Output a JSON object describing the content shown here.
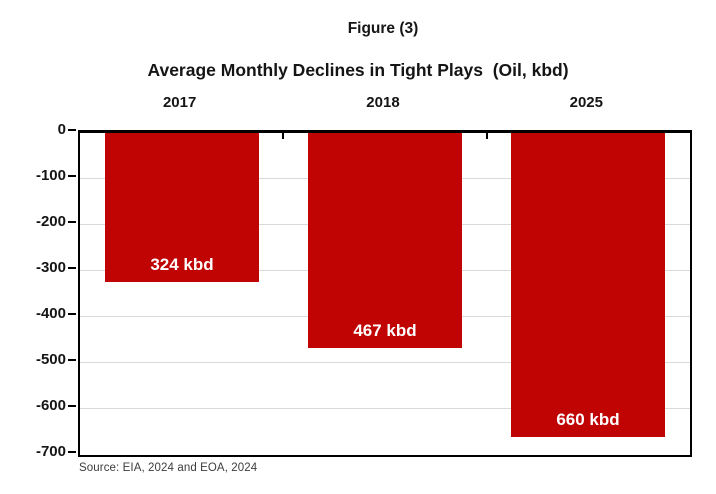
{
  "chart_data": {
    "type": "bar",
    "title": "Figure (3)",
    "subtitle": "Average Monthly Declines in Tight Plays  (Oil, kbd)",
    "categories": [
      "2017",
      "2018",
      "2025"
    ],
    "values": [
      -324,
      -467,
      -660
    ],
    "bar_labels": [
      "324 kbd",
      "467 kbd",
      "660 kbd"
    ],
    "ylim": [
      -700,
      0
    ],
    "yticks": [
      0,
      -100,
      -200,
      -300,
      -400,
      -500,
      -600,
      -700
    ],
    "ytick_labels": [
      "0",
      "-100",
      "-200",
      "-300",
      "-400",
      "-500",
      "-600",
      "-700"
    ],
    "grid": true,
    "legend": false,
    "gridline_color": "#d9d9d9",
    "axis_color": "#000000",
    "bar_color": "#c00404",
    "bar_label_color": "#ffffff",
    "source": "Source: EIA, 2024 and EOA, 2024"
  }
}
